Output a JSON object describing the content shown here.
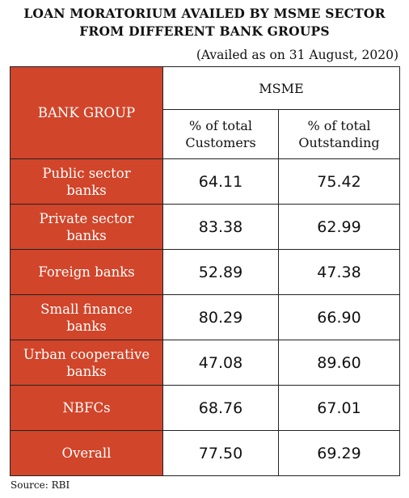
{
  "title": {
    "line1": "LOAN MORATORIUM AVAILED BY MSME SECTOR",
    "line2": "FROM DIFFERENT BANK GROUPS"
  },
  "subtitle": "(Availed as on 31 August, 2020)",
  "table": {
    "group_header": "BANK GROUP",
    "sector_header": "MSME",
    "col_customers": [
      "% of total",
      "Customers"
    ],
    "col_outstanding": [
      "% of total",
      "Outstanding"
    ],
    "rows": [
      {
        "group": [
          "Public sector",
          "banks"
        ],
        "customers": "64.11",
        "outstanding": "75.42"
      },
      {
        "group": [
          "Private sector",
          "banks"
        ],
        "customers": "83.38",
        "outstanding": "62.99"
      },
      {
        "group": [
          "Foreign banks"
        ],
        "customers": "52.89",
        "outstanding": "47.38"
      },
      {
        "group": [
          "Small finance",
          "banks"
        ],
        "customers": "80.29",
        "outstanding": "66.90"
      },
      {
        "group": [
          "Urban cooperative",
          "banks"
        ],
        "customers": "47.08",
        "outstanding": "89.60"
      },
      {
        "group": [
          "NBFCs"
        ],
        "customers": "68.76",
        "outstanding": "67.01"
      },
      {
        "group": [
          "Overall"
        ],
        "customers": "77.50",
        "outstanding": "69.29"
      }
    ]
  },
  "source": "Source: RBI",
  "colors": {
    "accent": "#d1452a"
  }
}
